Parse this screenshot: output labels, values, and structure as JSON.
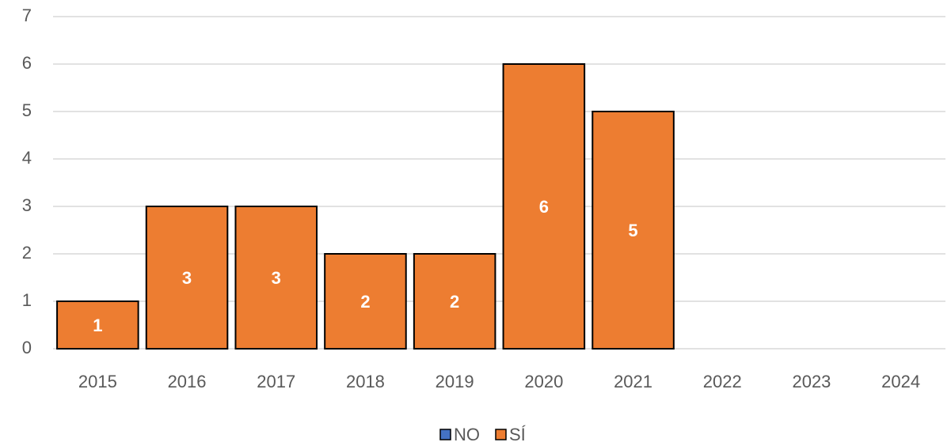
{
  "chart_data": {
    "type": "stacked_bar",
    "categories": [
      "2015",
      "2016",
      "2017",
      "2018",
      "2019",
      "2020",
      "2021",
      "2022",
      "2023",
      "2024"
    ],
    "series": [
      {
        "name": "NO",
        "color": "#4472c4",
        "values": [
          0,
          0,
          0,
          0,
          0,
          0,
          0,
          null,
          null,
          null
        ]
      },
      {
        "name": "SÍ",
        "color": "#ed7d31",
        "values": [
          1,
          3,
          3,
          2,
          2,
          6,
          5,
          null,
          null,
          null
        ]
      }
    ],
    "ylim": [
      0,
      7
    ],
    "yticks": [
      0,
      1,
      2,
      3,
      4,
      5,
      6,
      7
    ],
    "grid": true,
    "legend": "bottom"
  }
}
